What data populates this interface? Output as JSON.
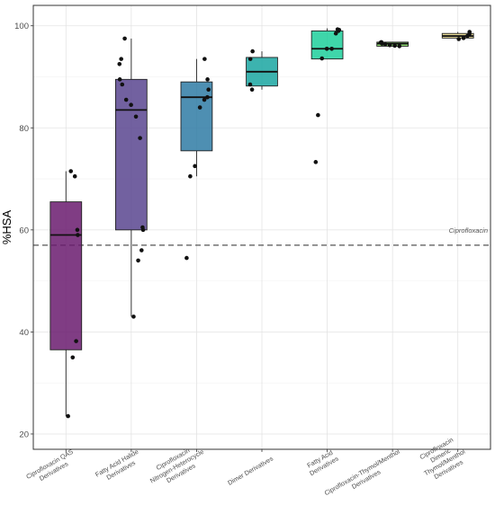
{
  "chart_data": {
    "type": "box",
    "ylabel": "%HSA",
    "xlabel": "",
    "ylim": [
      17,
      104
    ],
    "yticks": [
      20,
      40,
      60,
      80,
      100
    ],
    "grid": true,
    "reference_line": {
      "value": 57,
      "label": "Ciprofloxacin",
      "style": "dashed"
    },
    "categories": [
      {
        "lines": [
          "Ciprofloxacin QAS",
          "Derivatives"
        ],
        "color": "#6a1b6f",
        "box": {
          "q1": 36.5,
          "median": 59,
          "q3": 65.5,
          "whisker_low": 23.5,
          "whisker_high": 71.5
        },
        "points": [
          71.5,
          70.5,
          60,
          59,
          38.2,
          35,
          23.5
        ]
      },
      {
        "lines": [
          "Fatty Acid Halide",
          "Derivatives"
        ],
        "color": "#59458f",
        "box": {
          "q1": 60,
          "median": 83.5,
          "q3": 89.5,
          "whisker_low": 43,
          "whisker_high": 97.5
        },
        "points": [
          97.5,
          93.5,
          92.5,
          89.5,
          88.5,
          85.5,
          84.5,
          82.2,
          78,
          60.5,
          60,
          56,
          54,
          43
        ]
      },
      {
        "lines": [
          "Ciprofloxacin",
          "Nitrogen-Heterocycle",
          "Derivatives"
        ],
        "color": "#2f7ba5",
        "box": {
          "q1": 75.5,
          "median": 86,
          "q3": 89,
          "whisker_low": 70.5,
          "whisker_high": 93.5
        },
        "points": [
          93.5,
          89.5,
          87.5,
          86,
          85.5,
          84,
          72.5,
          70.5,
          54.5
        ]
      },
      {
        "lines": [
          "Dimer Derivatives"
        ],
        "color": "#1aa6a1",
        "box": {
          "q1": 88.2,
          "median": 91,
          "q3": 93.8,
          "whisker_low": 87.5,
          "whisker_high": 95
        },
        "points": [
          95,
          93.5,
          88.5,
          87.5
        ]
      },
      {
        "lines": [
          "Fatty Acid",
          "Derivatives"
        ],
        "color": "#1dcf9b",
        "box": {
          "q1": 93.5,
          "median": 95.5,
          "q3": 99,
          "whisker_low": 93.5,
          "whisker_high": 99.5
        },
        "points": [
          99.3,
          99.2,
          99,
          98.5,
          95.5,
          95.5,
          93.6,
          82.5,
          73.3
        ]
      },
      {
        "lines": [
          "Ciprofloxacin-Thymol/Menthol",
          "Derivatives"
        ],
        "color": "#7dd95a",
        "box": {
          "q1": 96,
          "median": 96.5,
          "q3": 96.8,
          "whisker_low": 96,
          "whisker_high": 96.8
        },
        "points": [
          96.8,
          96.7,
          96.5,
          96.4,
          96.2,
          96.1,
          96
        ]
      },
      {
        "lines": [
          "Ciprofloxacin",
          "Dimeric",
          "Thymol/Menthol",
          "Derivatives"
        ],
        "color": "#e8d88a",
        "box": {
          "q1": 97.6,
          "median": 98,
          "q3": 98.5,
          "whisker_low": 97.3,
          "whisker_high": 98.8
        },
        "points": [
          98.8,
          98.4,
          98,
          97.6,
          97.4
        ]
      }
    ]
  }
}
